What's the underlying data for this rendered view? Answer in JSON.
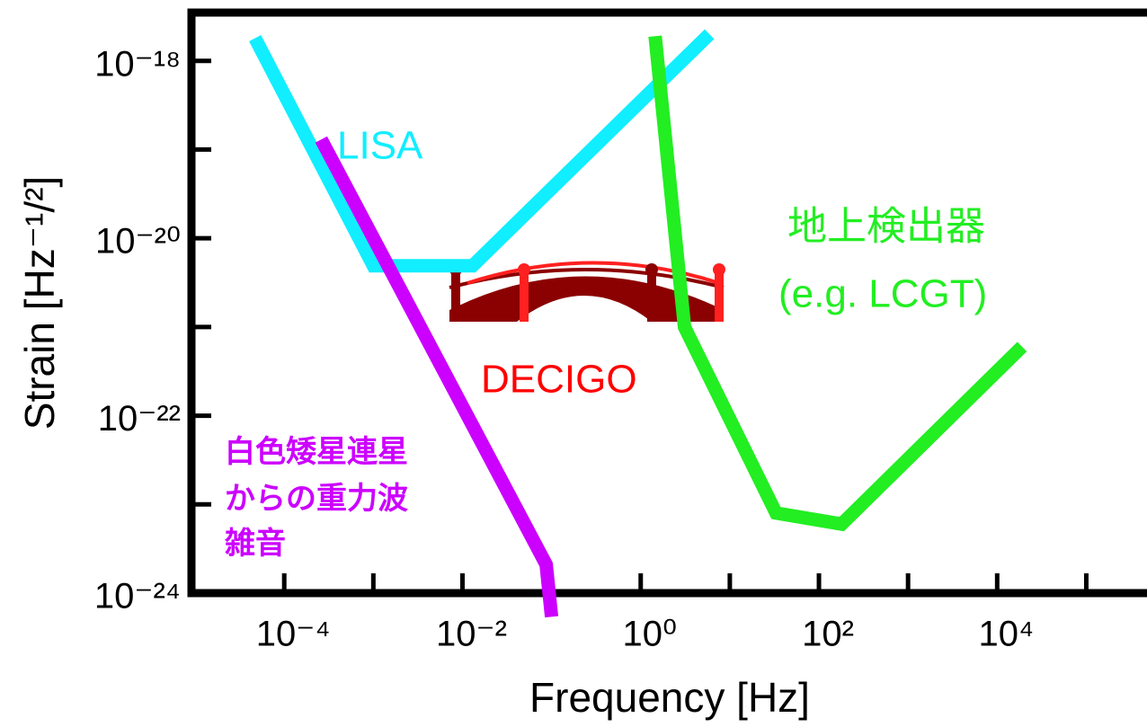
{
  "chart_data": {
    "type": "line",
    "xlabel": "Frequency [Hz]",
    "ylabel": "Strain [Hz⁻¹/²]",
    "xscale": "log",
    "yscale": "log",
    "xlim": [
      9.1e-06,
      480000.0
    ],
    "ylim": [
      1e-24,
      3.5e-18
    ],
    "xticks": [
      {
        "value": 0.0001,
        "label": "10⁻⁴"
      },
      {
        "value": 0.01,
        "label": "10⁻²"
      },
      {
        "value": 1,
        "label": "10⁰"
      },
      {
        "value": 100,
        "label": "10²"
      },
      {
        "value": 10000,
        "label": "10⁴"
      }
    ],
    "xminor_ticks": [
      0.001,
      0.1,
      10,
      1000,
      100000
    ],
    "yticks": [
      {
        "value": 1e-18,
        "label": "10⁻¹⁸"
      },
      {
        "value": 1e-20,
        "label": "10⁻²⁰"
      },
      {
        "value": 1e-22,
        "label": "10⁻²²"
      },
      {
        "value": 1e-24,
        "label": "10⁻²⁴"
      }
    ],
    "yminor_ticks": [
      1e-19,
      1e-21,
      1e-23
    ],
    "series": [
      {
        "color": "#11eeff",
        "x": [
          4.7e-05,
          0.001,
          0.013,
          5.9
        ],
        "values": [
          1.8e-18,
          4.9e-21,
          4.9e-21,
          2e-18
        ]
      },
      {
        "color": "#cc00ff",
        "x": [
          0.00026,
          0.087,
          0.1
        ],
        "values": [
          1.3e-19,
          2.1e-24,
          5.4e-25
        ]
      },
      {
        "color": "#22ee22",
        "x": [
          1.45,
          3.1,
          33,
          180,
          19000
        ],
        "values": [
          1.9e-18,
          1e-21,
          8e-24,
          6e-24,
          6e-22
        ]
      }
    ],
    "annotations": [
      {
        "text": "LISA",
        "color": "#11eeff"
      },
      {
        "text": "地上検出器",
        "color": "#22ee22"
      },
      {
        "text": "(e.g. LCGT)",
        "color": "#22ee22"
      },
      {
        "text": "DECIGO",
        "color": "#ff0000"
      },
      {
        "text": "白色矮星連星",
        "color": "#cc00ff"
      },
      {
        "text": "からの重力波",
        "color": "#cc00ff"
      },
      {
        "text": "雑音",
        "color": "#cc00ff"
      }
    ]
  }
}
